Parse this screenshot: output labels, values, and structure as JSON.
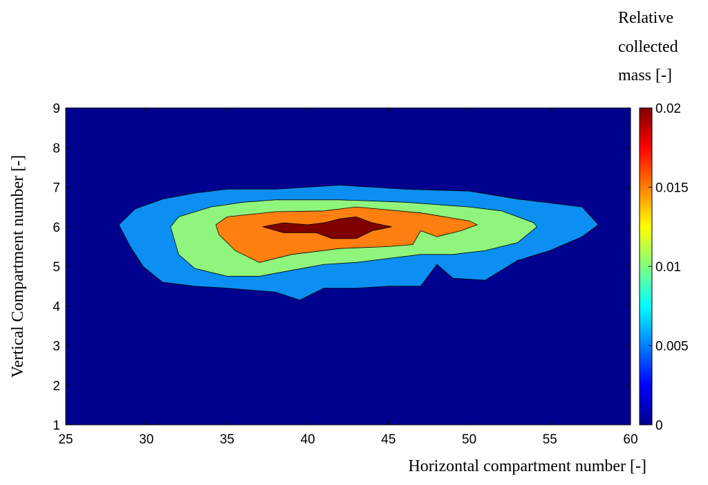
{
  "chart_data": {
    "type": "contour",
    "xlabel": "Horizontal compartment number [-]",
    "ylabel": "Vertical Compartment number [-]",
    "colorbar_label": [
      "Relative",
      "collected",
      "mass [-]"
    ],
    "xlim": [
      25,
      60
    ],
    "ylim": [
      1,
      9
    ],
    "x_ticks": [
      25,
      30,
      35,
      40,
      45,
      50,
      55,
      60
    ],
    "y_ticks": [
      1,
      2,
      3,
      4,
      5,
      6,
      7,
      8,
      9
    ],
    "colorbar_range": [
      0,
      0.02
    ],
    "colorbar_ticks": [
      "0",
      "0.005",
      "0.01",
      "0.015",
      "0.02"
    ],
    "background_color": "#00008f",
    "levels": [
      {
        "level": 0.005,
        "color": "#0b8ff2",
        "outline": [
          [
            28.3,
            6.05
          ],
          [
            29.3,
            6.45
          ],
          [
            31.0,
            6.7
          ],
          [
            33.0,
            6.85
          ],
          [
            35.0,
            6.95
          ],
          [
            38.0,
            6.95
          ],
          [
            42.0,
            7.05
          ],
          [
            46.0,
            6.95
          ],
          [
            50.0,
            6.9
          ],
          [
            53.0,
            6.7
          ],
          [
            55.0,
            6.6
          ],
          [
            57.0,
            6.5
          ],
          [
            58.0,
            6.05
          ],
          [
            57.0,
            5.75
          ],
          [
            55.0,
            5.4
          ],
          [
            53.0,
            5.15
          ],
          [
            51.0,
            4.65
          ],
          [
            49.0,
            4.7
          ],
          [
            48.0,
            5.05
          ],
          [
            47.0,
            4.5
          ],
          [
            45.0,
            4.5
          ],
          [
            43.0,
            4.45
          ],
          [
            41.0,
            4.45
          ],
          [
            39.5,
            4.15
          ],
          [
            38.0,
            4.35
          ],
          [
            35.0,
            4.45
          ],
          [
            33.0,
            4.5
          ],
          [
            31.0,
            4.6
          ],
          [
            29.8,
            5.0
          ],
          [
            29.0,
            5.5
          ]
        ]
      },
      {
        "level": 0.01,
        "color": "#8ff57d",
        "outline": [
          [
            31.5,
            6.0
          ],
          [
            32.0,
            6.25
          ],
          [
            34.0,
            6.5
          ],
          [
            36.0,
            6.62
          ],
          [
            38.0,
            6.68
          ],
          [
            42.0,
            6.68
          ],
          [
            46.0,
            6.62
          ],
          [
            50.0,
            6.5
          ],
          [
            52.0,
            6.4
          ],
          [
            54.0,
            6.1
          ],
          [
            54.2,
            6.0
          ],
          [
            53.0,
            5.6
          ],
          [
            51.0,
            5.4
          ],
          [
            49.0,
            5.3
          ],
          [
            47.0,
            5.3
          ],
          [
            45.0,
            5.2
          ],
          [
            43.0,
            5.1
          ],
          [
            41.0,
            5.05
          ],
          [
            39.0,
            4.9
          ],
          [
            37.0,
            4.75
          ],
          [
            35.0,
            4.75
          ],
          [
            33.0,
            4.95
          ],
          [
            32.0,
            5.3
          ]
        ]
      },
      {
        "level": 0.015,
        "color": "#ff7f10",
        "outline": [
          [
            34.3,
            6.05
          ],
          [
            35.0,
            6.25
          ],
          [
            38.0,
            6.38
          ],
          [
            41.0,
            6.4
          ],
          [
            43.0,
            6.5
          ],
          [
            47.0,
            6.35
          ],
          [
            50.0,
            6.15
          ],
          [
            50.5,
            6.05
          ],
          [
            49.5,
            5.9
          ],
          [
            48.0,
            5.75
          ],
          [
            47.0,
            5.9
          ],
          [
            46.5,
            5.55
          ],
          [
            45.0,
            5.5
          ],
          [
            42.0,
            5.45
          ],
          [
            39.0,
            5.3
          ],
          [
            37.0,
            5.1
          ],
          [
            35.5,
            5.4
          ],
          [
            34.5,
            5.8
          ]
        ]
      },
      {
        "level": 0.02,
        "color": "#7e0000",
        "outline": [
          [
            37.2,
            6.0
          ],
          [
            38.5,
            6.1
          ],
          [
            40.0,
            6.05
          ],
          [
            41.0,
            6.1
          ],
          [
            42.0,
            6.2
          ],
          [
            43.0,
            6.25
          ],
          [
            44.0,
            6.1
          ],
          [
            45.2,
            6.0
          ],
          [
            44.0,
            5.9
          ],
          [
            43.0,
            5.7
          ],
          [
            41.5,
            5.7
          ],
          [
            40.5,
            5.85
          ],
          [
            38.5,
            5.85
          ]
        ]
      }
    ]
  }
}
